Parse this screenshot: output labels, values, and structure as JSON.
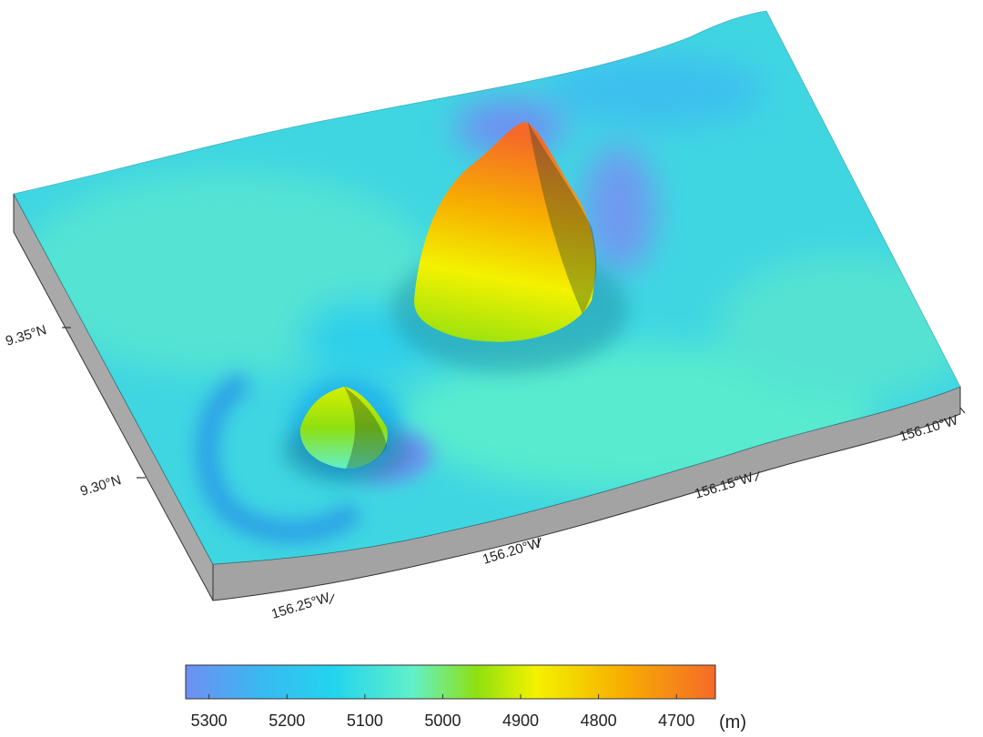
{
  "map": {
    "axes": {
      "longitude_labels": [
        "156.25°W",
        "156.20°W",
        "156.15°W",
        "156.10°W"
      ],
      "latitude_labels": [
        "9.30°N",
        "9.35°N"
      ]
    },
    "colors": {
      "deep": "#6f8ff2",
      "mid_deep": "#23c6ee",
      "mid": "#62f0c8",
      "green": "#8fe010",
      "yellow": "#f3f200",
      "orange": "#f7b000",
      "peak": "#f56a28",
      "side": "#a3a3a3"
    },
    "features": {
      "large_seamount_peak_depth_m": 4680,
      "small_seamount_peak_depth_m": 4960
    }
  },
  "colorbar": {
    "tick_labels": [
      "5300",
      "5200",
      "5100",
      "5000",
      "4900",
      "4800",
      "4700"
    ],
    "tick_values": [
      5300,
      5200,
      5100,
      5000,
      4900,
      4800,
      4700
    ],
    "range": [
      5330,
      4650
    ],
    "unit": "(m)"
  }
}
